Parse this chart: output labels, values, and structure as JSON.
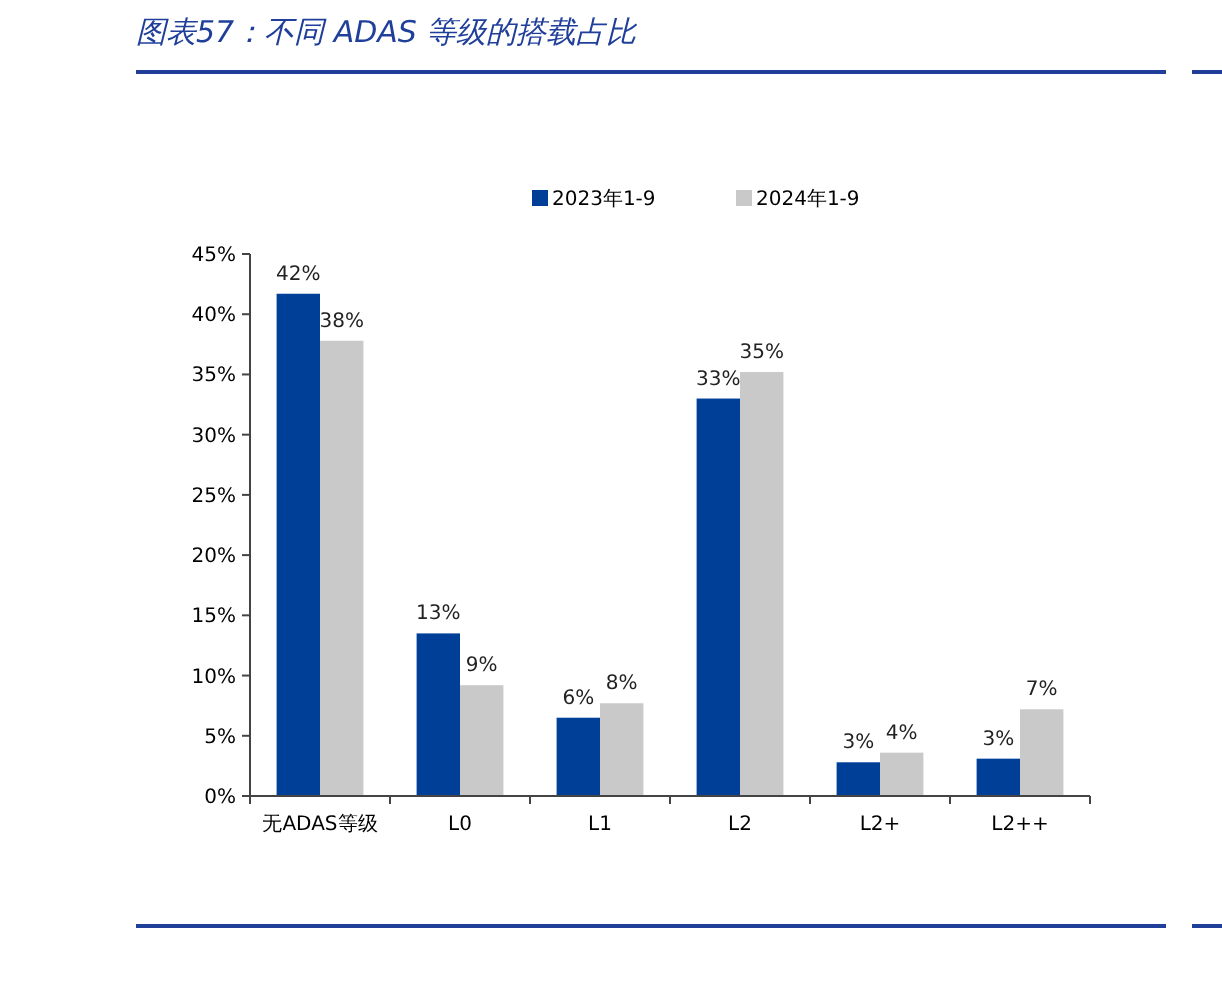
{
  "chart_data": {
    "type": "bar",
    "title": "图表57：不同 ADAS 等级的搭载占比",
    "categories": [
      "无ADAS等级",
      "L0",
      "L1",
      "L2",
      "L2+",
      "L2++"
    ],
    "series": [
      {
        "name": "2023年1-9",
        "color": "#003f98",
        "values": [
          41.7,
          13.5,
          6.5,
          33.0,
          2.8,
          3.1
        ],
        "value_labels": [
          "42%",
          "13%",
          "6%",
          "33%",
          "3%",
          "3%"
        ]
      },
      {
        "name": "2024年1-9",
        "color": "#c9c9c9",
        "values": [
          37.8,
          9.2,
          7.7,
          35.2,
          3.6,
          7.2
        ],
        "value_labels": [
          "38%",
          "9%",
          "8%",
          "35%",
          "4%",
          "7%"
        ]
      }
    ],
    "ylim": [
      0,
      45
    ],
    "yticks": [
      {
        "value": 0,
        "label": "0%"
      },
      {
        "value": 5,
        "label": "5%"
      },
      {
        "value": 10,
        "label": "10%"
      },
      {
        "value": 15,
        "label": "15%"
      },
      {
        "value": 20,
        "label": "20%"
      },
      {
        "value": 25,
        "label": "25%"
      },
      {
        "value": 30,
        "label": "30%"
      },
      {
        "value": 35,
        "label": "35%"
      },
      {
        "value": 40,
        "label": "40%"
      },
      {
        "value": 45,
        "label": "45%"
      }
    ],
    "legend": "top",
    "grid": false
  }
}
